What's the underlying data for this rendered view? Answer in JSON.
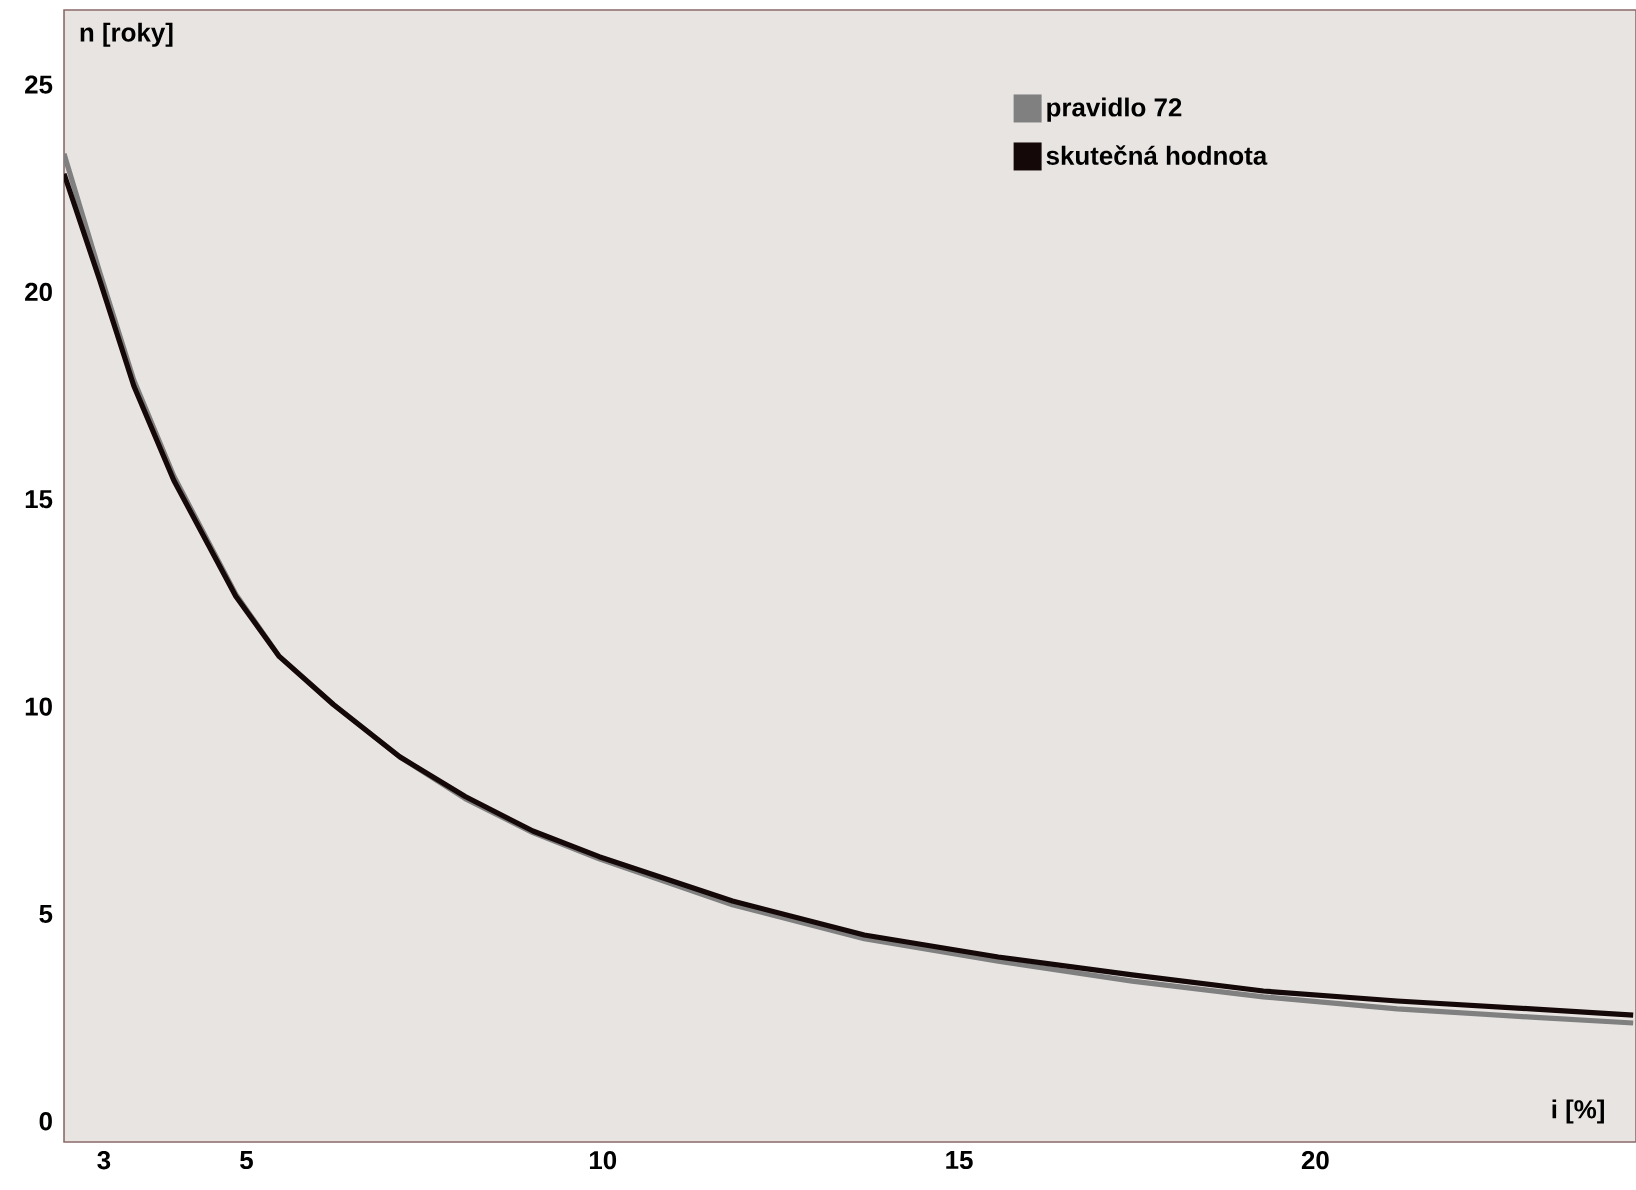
{
  "chart_data": {
    "type": "line",
    "xlabel": "i [%]",
    "ylabel": "n [roky]",
    "xlim": [
      2.44,
      24.5
    ],
    "ylim": [
      -0.5,
      26.8
    ],
    "xticks": [
      3,
      5,
      10,
      15,
      20
    ],
    "yticks": [
      0,
      5,
      10,
      15,
      20,
      25
    ],
    "grid": false,
    "legend": "top right",
    "marker": "none",
    "line_style": "solid",
    "series": [
      {
        "name": "pravidlo 72",
        "color": "#808080",
        "x": [
          2.44,
          2.94,
          3.42,
          3.98,
          4.85,
          5.46,
          6.22,
          7.15,
          8.07,
          9.02,
          9.95,
          11.82,
          13.67,
          15.55,
          17.43,
          19.27,
          21.15,
          23.03,
          24.46
        ],
        "values": [
          23.33,
          20.48,
          17.87,
          15.56,
          12.71,
          11.21,
          10.05,
          8.79,
          7.78,
          6.96,
          6.33,
          5.22,
          4.4,
          3.86,
          3.38,
          3.0,
          2.71,
          2.51,
          2.37
        ]
      },
      {
        "name": "skutečná hodnota",
        "color": "#150808",
        "x": [
          2.44,
          2.94,
          3.42,
          3.98,
          4.85,
          5.46,
          6.22,
          7.15,
          8.07,
          9.02,
          9.95,
          11.82,
          13.67,
          15.55,
          17.43,
          19.27,
          21.15,
          23.03,
          24.46
        ],
        "values": [
          22.85,
          20.29,
          17.73,
          15.46,
          12.66,
          11.21,
          10.05,
          8.79,
          7.83,
          7.0,
          6.38,
          5.31,
          4.49,
          3.96,
          3.53,
          3.14,
          2.9,
          2.71,
          2.56
        ]
      }
    ]
  }
}
